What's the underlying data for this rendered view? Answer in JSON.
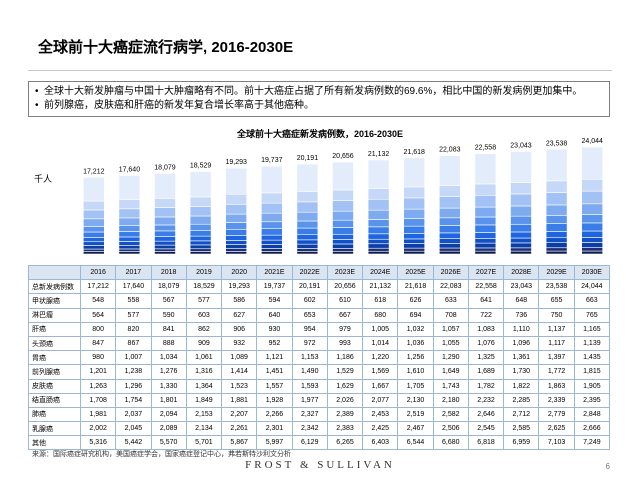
{
  "page": {
    "title": "全球前十大癌症流行病学, 2016-2030E",
    "bullets": [
      "全球十大新发肿瘤与中国十大肿瘤略有不同。前十大癌症占据了所有新发病例数的69.6%，相比中国的新发病例更加集中。",
      "前列腺癌，皮肤癌和肝癌的新发年复合增长率高于其他癌种。"
    ],
    "source": "来源：国际癌症研究机构，美国癌症学会，国家癌症登记中心，弗若斯特沙利文分析",
    "logo": "FROST & SULLIVAN",
    "page_number": "6"
  },
  "chart_data": {
    "type": "bar",
    "title": "全球前十大癌症新发病例数，2016-2030E",
    "unit_label": "千人",
    "categories": [
      "2016",
      "2017",
      "2018",
      "2019",
      "2020",
      "2021E",
      "2022E",
      "2023E",
      "2024E",
      "2025E",
      "2026E",
      "2027E",
      "2028E",
      "2029E",
      "2030E"
    ],
    "totals_label": "总新发病例数",
    "totals": [
      17212,
      17640,
      18079,
      18529,
      19293,
      19737,
      20191,
      20656,
      21132,
      21618,
      22083,
      22558,
      23043,
      23538,
      24044
    ],
    "totals_text": [
      "17,212",
      "17,640",
      "18,079",
      "18,529",
      "19,293",
      "19,737",
      "20,191",
      "20,656",
      "21,132",
      "21,618",
      "22,083",
      "22,558",
      "23,043",
      "23,538",
      "24,044"
    ],
    "stack_type": "stacked bar; stacking order bottom-to-top matches table row order",
    "series": [
      {
        "name": "甲状腺癌",
        "color": "#0d1b4d",
        "values": [
          "548",
          "558",
          "567",
          "577",
          "586",
          "594",
          "602",
          "610",
          "618",
          "626",
          "633",
          "641",
          "648",
          "655",
          "663"
        ]
      },
      {
        "name": "淋巴瘤",
        "color": "#1a2f78",
        "values": [
          "564",
          "577",
          "590",
          "603",
          "627",
          "640",
          "653",
          "667",
          "680",
          "694",
          "708",
          "722",
          "736",
          "750",
          "765"
        ]
      },
      {
        "name": "肝癌",
        "color": "#0b3fa6",
        "values": [
          "800",
          "820",
          "841",
          "862",
          "906",
          "930",
          "954",
          "979",
          "1,005",
          "1,032",
          "1,057",
          "1,083",
          "1,110",
          "1,137",
          "1,165"
        ]
      },
      {
        "name": "头颈癌",
        "color": "#1250c8",
        "values": [
          "847",
          "867",
          "888",
          "909",
          "932",
          "952",
          "972",
          "993",
          "1,014",
          "1,036",
          "1,055",
          "1,076",
          "1,096",
          "1,117",
          "1,139"
        ]
      },
      {
        "name": "胃癌",
        "color": "#1f64e0",
        "values": [
          "980",
          "1,007",
          "1,034",
          "1,061",
          "1,089",
          "1,121",
          "1,153",
          "1,186",
          "1,220",
          "1,256",
          "1,290",
          "1,325",
          "1,361",
          "1,397",
          "1,435"
        ]
      },
      {
        "name": "前列腺癌",
        "color": "#3a7ce8",
        "values": [
          "1,201",
          "1,238",
          "1,276",
          "1,316",
          "1,414",
          "1,451",
          "1,490",
          "1,529",
          "1,569",
          "1,610",
          "1,649",
          "1,689",
          "1,730",
          "1,772",
          "1,815"
        ]
      },
      {
        "name": "皮肤癌",
        "color": "#5a93ec",
        "values": [
          "1,263",
          "1,296",
          "1,330",
          "1,364",
          "1,523",
          "1,557",
          "1,593",
          "1,629",
          "1,667",
          "1,705",
          "1,743",
          "1,782",
          "1,822",
          "1,863",
          "1,905"
        ]
      },
      {
        "name": "结直肠癌",
        "color": "#7eaaf0",
        "values": [
          "1,708",
          "1,754",
          "1,801",
          "1,849",
          "1,881",
          "1,928",
          "1,977",
          "2,026",
          "2,077",
          "2,130",
          "2,180",
          "2,232",
          "2,285",
          "2,339",
          "2,395"
        ]
      },
      {
        "name": "肺癌",
        "color": "#a2c1f4",
        "values": [
          "1,981",
          "2,037",
          "2,094",
          "2,153",
          "2,207",
          "2,266",
          "2,327",
          "2,389",
          "2,453",
          "2,519",
          "2,582",
          "2,646",
          "2,712",
          "2,779",
          "2,848"
        ]
      },
      {
        "name": "乳腺癌",
        "color": "#c5d8f8",
        "values": [
          "2,002",
          "2,045",
          "2,089",
          "2,134",
          "2,261",
          "2,301",
          "2,342",
          "2,383",
          "2,425",
          "2,467",
          "2,506",
          "2,545",
          "2,585",
          "2,625",
          "2,666"
        ]
      },
      {
        "name": "其他",
        "color": "#e3ecfb",
        "values": [
          "5,316",
          "5,442",
          "5,570",
          "5,701",
          "5,867",
          "5,997",
          "6,129",
          "6,265",
          "6,403",
          "6,544",
          "6,680",
          "6,818",
          "6,959",
          "7,103",
          "7,249"
        ]
      }
    ]
  }
}
